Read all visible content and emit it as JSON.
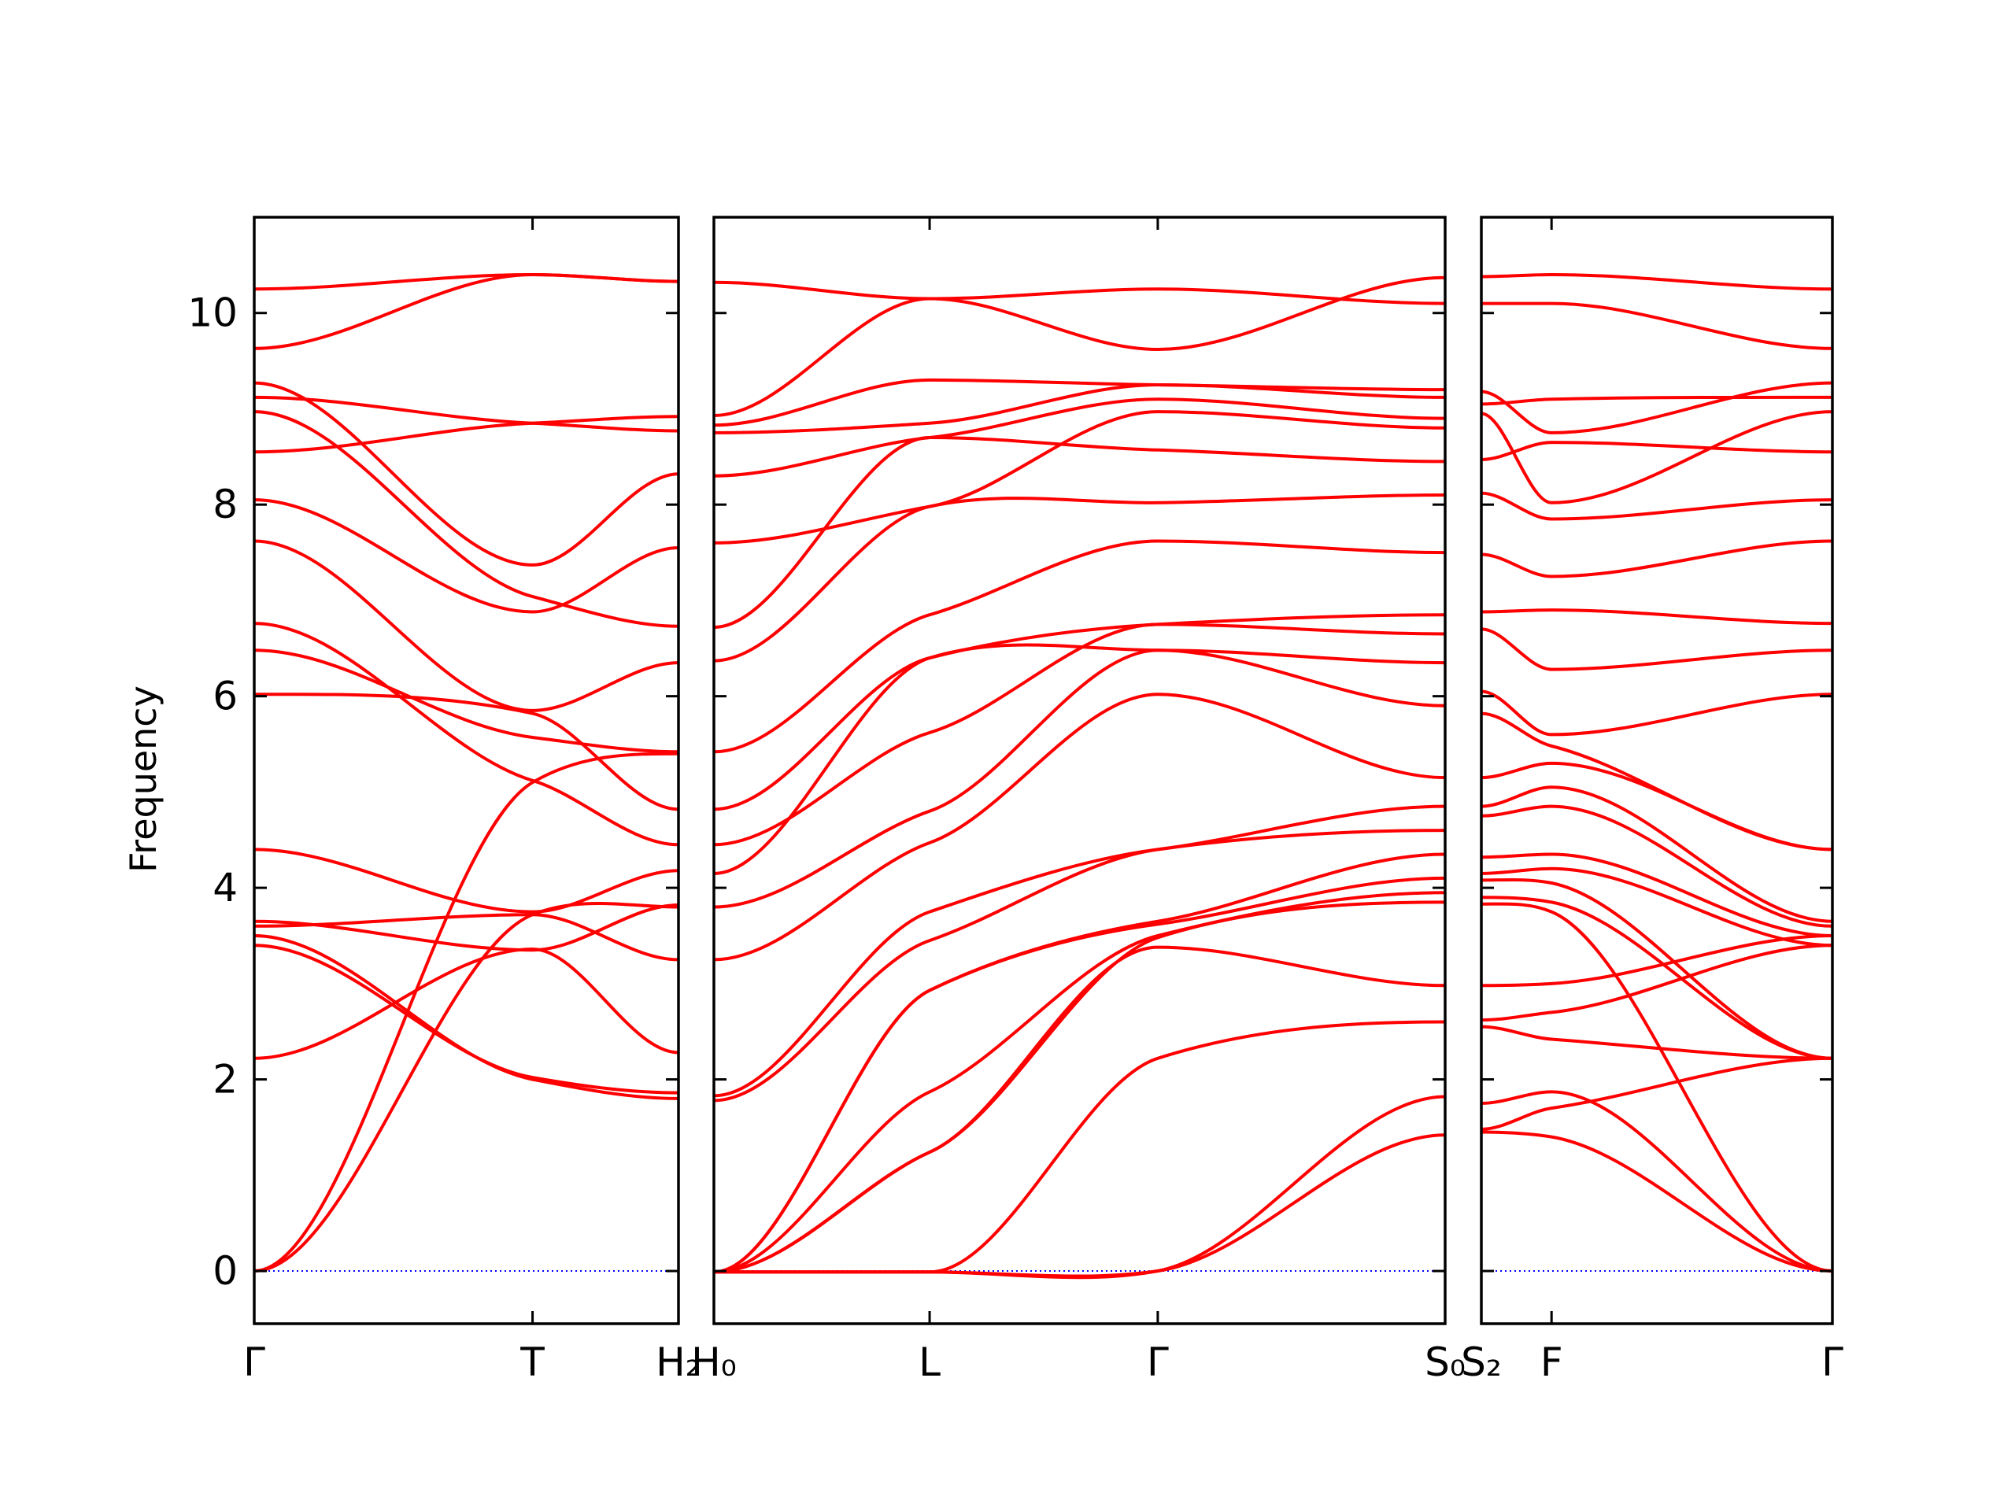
{
  "chart_data": {
    "type": "line",
    "ylabel": "Frequency",
    "ylim": [
      -0.55,
      11.0
    ],
    "yticks": [
      0,
      2,
      4,
      6,
      8,
      10
    ],
    "ytick_labels": [
      "0",
      "2",
      "4",
      "6",
      "8",
      "10"
    ],
    "line_color": "#ff0000",
    "zero_line_color": "#0000ff",
    "panels": [
      {
        "xticks": [
          0,
          0.656,
          1
        ],
        "xtick_labels": [
          "Γ",
          "T",
          "H₂"
        ],
        "anchors": [
          [
            10.25,
            10.4,
            10.33
          ],
          [
            9.63,
            10.4,
            10.33
          ],
          [
            9.27,
            7.37,
            8.32
          ],
          [
            9.12,
            8.85,
            8.77
          ],
          [
            8.97,
            7.04,
            6.73
          ],
          [
            8.55,
            8.85,
            8.92
          ],
          [
            8.05,
            6.88,
            7.55
          ],
          [
            7.62,
            5.85,
            6.35
          ],
          [
            6.76,
            5.12,
            4.45
          ],
          [
            6.48,
            5.57,
            5.42
          ],
          [
            6.02,
            5.82,
            4.82
          ],
          [
            4.4,
            3.75,
            4.18
          ],
          [
            3.65,
            3.35,
            3.82
          ],
          [
            3.6,
            3.72,
            3.25
          ],
          [
            3.5,
            2.0,
            1.8
          ],
          [
            3.4,
            2.02,
            1.86
          ],
          [
            2.22,
            3.36,
            2.28
          ],
          [
            0.0,
            5.1,
            5.4
          ],
          [
            0.0,
            3.72,
            3.8
          ]
        ]
      },
      {
        "xticks": [
          0,
          0.295,
          0.607,
          1
        ],
        "xtick_labels": [
          "H₀",
          "L",
          "Γ",
          "S₀"
        ],
        "anchors": [
          [
            10.32,
            10.15,
            10.25,
            10.1
          ],
          [
            8.93,
            10.15,
            9.62,
            10.37
          ],
          [
            8.83,
            9.3,
            9.25,
            9.2
          ],
          [
            8.75,
            8.85,
            9.25,
            9.12
          ],
          [
            8.3,
            8.7,
            9.1,
            8.9
          ],
          [
            7.6,
            7.98,
            8.97,
            8.8
          ],
          [
            6.72,
            8.7,
            8.57,
            8.45
          ],
          [
            6.37,
            7.98,
            8.02,
            8.1
          ],
          [
            5.42,
            6.85,
            7.62,
            7.5
          ],
          [
            4.82,
            6.4,
            6.75,
            6.85
          ],
          [
            4.45,
            5.62,
            6.75,
            6.65
          ],
          [
            4.15,
            6.4,
            6.48,
            6.35
          ],
          [
            3.8,
            4.8,
            6.48,
            5.9
          ],
          [
            3.25,
            4.47,
            6.02,
            5.15
          ],
          [
            1.83,
            3.75,
            4.4,
            4.85
          ],
          [
            1.78,
            3.45,
            4.4,
            4.6
          ],
          [
            -0.01,
            2.93,
            3.65,
            4.35
          ],
          [
            -0.01,
            2.93,
            3.62,
            4.1
          ],
          [
            -0.01,
            1.87,
            3.5,
            3.95
          ],
          [
            -0.01,
            1.24,
            3.48,
            3.85
          ],
          [
            -0.01,
            1.24,
            3.38,
            2.98
          ],
          [
            -0.01,
            -0.01,
            2.22,
            2.6
          ],
          [
            -0.01,
            -0.01,
            0.0,
            1.82
          ],
          [
            -0.01,
            -0.01,
            0.0,
            1.42
          ]
        ]
      },
      {
        "xticks": [
          0,
          0.2,
          1
        ],
        "xtick_labels": [
          "S₂",
          "F",
          "Γ"
        ],
        "anchors": [
          [
            10.38,
            10.4,
            10.25
          ],
          [
            10.1,
            10.1,
            9.63
          ],
          [
            9.18,
            8.75,
            9.27
          ],
          [
            9.05,
            9.1,
            9.12
          ],
          [
            8.95,
            8.02,
            8.97
          ],
          [
            8.47,
            8.65,
            8.55
          ],
          [
            8.12,
            7.85,
            8.05
          ],
          [
            7.48,
            7.25,
            7.62
          ],
          [
            6.88,
            6.9,
            6.76
          ],
          [
            6.7,
            6.28,
            6.48
          ],
          [
            6.05,
            5.6,
            6.02
          ],
          [
            5.82,
            5.48,
            4.4
          ],
          [
            5.15,
            5.3,
            4.4
          ],
          [
            4.85,
            5.05,
            3.65
          ],
          [
            4.75,
            4.85,
            3.6
          ],
          [
            4.32,
            4.35,
            3.5
          ],
          [
            4.15,
            4.2,
            3.4
          ],
          [
            4.08,
            4.05,
            2.22
          ],
          [
            3.9,
            3.85,
            2.22
          ],
          [
            3.83,
            3.75,
            0.0
          ],
          [
            2.98,
            3.0,
            3.5
          ],
          [
            2.62,
            2.7,
            3.4
          ],
          [
            2.55,
            2.42,
            2.22
          ],
          [
            1.75,
            1.87,
            0.0
          ],
          [
            1.48,
            1.7,
            2.22
          ],
          [
            1.45,
            1.4,
            0.0
          ]
        ]
      }
    ]
  }
}
